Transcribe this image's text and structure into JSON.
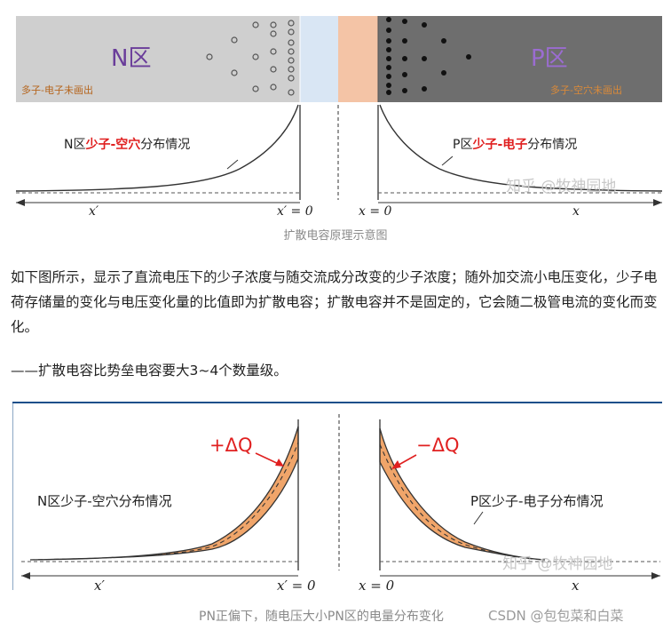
{
  "figure1": {
    "n_region_label": "N区",
    "p_region_label": "P区",
    "n_majority_note": "多子-电子未画出",
    "p_majority_note": "多子-空穴未画出",
    "n_curve_label_prefix": "N区",
    "n_curve_label_highlight": "少子-空穴",
    "n_curve_label_suffix": "分布情况",
    "p_curve_label_prefix": "P区",
    "p_curve_label_highlight": "少子-电子",
    "p_curve_label_suffix": "分布情况",
    "axis_x_prime": "x′",
    "axis_x_prime_zero": "x′ = 0",
    "axis_x_zero": "x = 0",
    "axis_x": "x",
    "watermark": "知乎 @牧神园地",
    "colors": {
      "highlight": "#e02020",
      "n_bg": "#cfcfcf",
      "p_bg": "#6e6e6e",
      "depletion_blue": "#d9e6f4",
      "depletion_orange": "#f4c4a6",
      "region_text": "#6a3d9a",
      "note_text": "#b5651d"
    }
  },
  "caption1": "扩散电容原理示意图",
  "paragraph": "如下图所示，显示了直流电压下的少子浓度与随交流成分改变的少子浓度；随外加交流小电压变化，少子电荷存储量的变化与电压变化量的比值即为扩散电容；扩散电容并不是固定的，它会随二极管电流的变化而变化。",
  "note": "——扩散电容比势垒电容要大3~4个数量级。",
  "figure2": {
    "plus_dq": "+ΔQ",
    "minus_dq": "−ΔQ",
    "n_label": "N区少子-空穴分布情况",
    "p_label": "P区少子-电子分布情况",
    "axis_x_prime": "x′",
    "axis_x_prime_zero": "x′ = 0",
    "axis_x_zero": "x = 0",
    "axis_x": "x",
    "watermark": "知乎 @牧神园地",
    "colors": {
      "band_fill": "#f0a56a",
      "arrow": "#e02020"
    }
  },
  "caption2": "PN正偏下，随电压大小PN区的电量分布变化",
  "csdn_watermark": "CSDN @包包菜和白菜"
}
